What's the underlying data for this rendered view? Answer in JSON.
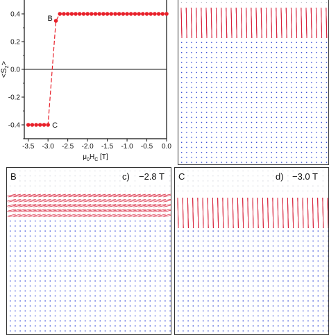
{
  "chart_data": {
    "type": "line",
    "ylabel": "<S_z>",
    "xlabel": "μ0HC [T]",
    "xlim": [
      -3.6,
      0.0
    ],
    "ylim": [
      -0.5,
      0.5
    ],
    "x_ticks": [
      "-3.5",
      "-3.0",
      "-2.5",
      "-2.0",
      "-1.5",
      "-1.0",
      "-0.5",
      "0.0"
    ],
    "y_ticks": [
      "-0.4",
      "-0.2",
      "0.0",
      "0.2",
      "0.4"
    ],
    "x": [
      -3.5,
      -3.4,
      -3.3,
      -3.2,
      -3.1,
      -3.0,
      -2.8,
      -2.7,
      -2.6,
      -2.5,
      -2.4,
      -2.3,
      -2.2,
      -2.1,
      -2.0,
      -1.9,
      -1.8,
      -1.7,
      -1.6,
      -1.5,
      -1.4,
      -1.3,
      -1.2,
      -1.1,
      -1.0,
      -0.9,
      -0.8,
      -0.7,
      -0.6,
      -0.5,
      -0.4,
      -0.3,
      -0.2,
      -0.1,
      0.0
    ],
    "y": [
      -0.4,
      -0.4,
      -0.4,
      -0.4,
      -0.4,
      -0.4,
      0.35,
      0.4,
      0.4,
      0.4,
      0.4,
      0.4,
      0.4,
      0.4,
      0.4,
      0.4,
      0.4,
      0.4,
      0.4,
      0.4,
      0.4,
      0.4,
      0.4,
      0.4,
      0.4,
      0.4,
      0.4,
      0.4,
      0.4,
      0.4,
      0.4,
      0.4,
      0.4,
      0.4,
      0.4
    ],
    "annotations": [
      {
        "text": "B",
        "x": -2.8,
        "y": 0.35
      },
      {
        "text": "C",
        "x": -3.0,
        "y": -0.4
      }
    ],
    "series_color": "#e8202a",
    "zero_line": true
  },
  "panels": [
    {
      "id": "a",
      "left_label": "",
      "letter": "",
      "field": ""
    },
    {
      "id": "c",
      "left_label": "B",
      "letter": "c)",
      "field": "−2.8 T"
    },
    {
      "id": "d",
      "left_label": "C",
      "letter": "d)",
      "field": "−3.0 T"
    }
  ],
  "colors": {
    "spin_red": "#d8203a",
    "spin_blue": "#3a4fd8",
    "axis": "#111111"
  }
}
